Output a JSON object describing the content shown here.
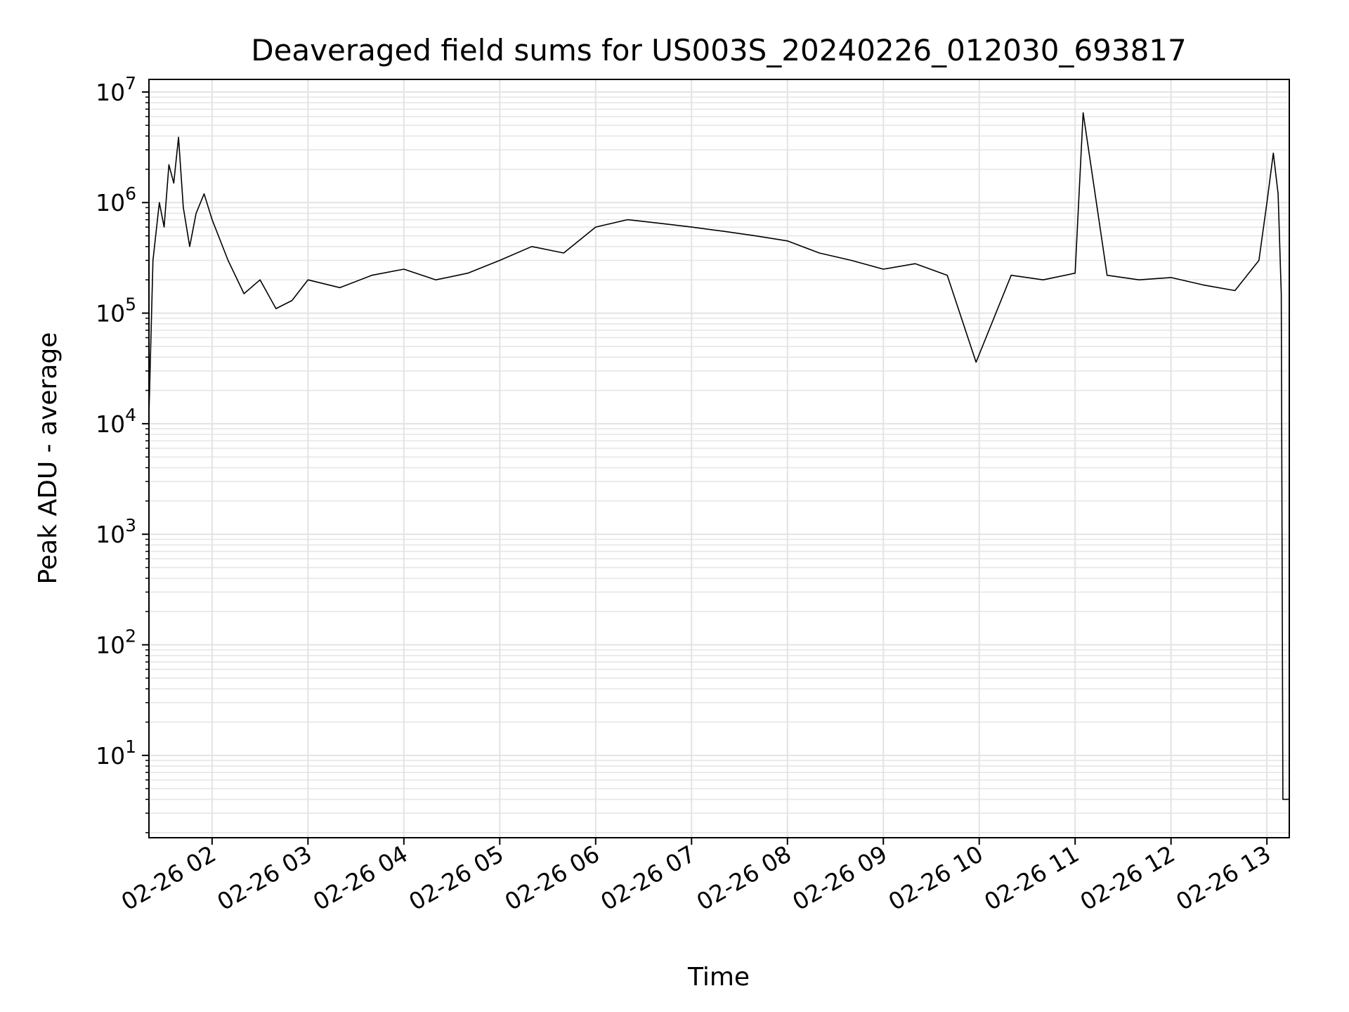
{
  "chart_data": {
    "type": "line",
    "title": "Deaveraged field sums for US003S_20240226_012030_693817",
    "xlabel": "Time",
    "ylabel": "Peak ADU - average",
    "x_axis": {
      "type": "date",
      "range": [
        "2024-02-26T01:20:30",
        "2024-02-26T13:14:00"
      ],
      "ticks": [
        {
          "value": "2024-02-26T02:00",
          "label": "02-26 02"
        },
        {
          "value": "2024-02-26T03:00",
          "label": "02-26 03"
        },
        {
          "value": "2024-02-26T04:00",
          "label": "02-26 04"
        },
        {
          "value": "2024-02-26T05:00",
          "label": "02-26 05"
        },
        {
          "value": "2024-02-26T06:00",
          "label": "02-26 06"
        },
        {
          "value": "2024-02-26T07:00",
          "label": "02-26 07"
        },
        {
          "value": "2024-02-26T08:00",
          "label": "02-26 08"
        },
        {
          "value": "2024-02-26T09:00",
          "label": "02-26 09"
        },
        {
          "value": "2024-02-26T10:00",
          "label": "02-26 10"
        },
        {
          "value": "2024-02-26T11:00",
          "label": "02-26 11"
        },
        {
          "value": "2024-02-26T12:00",
          "label": "02-26 12"
        },
        {
          "value": "2024-02-26T13:00",
          "label": "02-26 13"
        }
      ],
      "tick_label_rotation": 30
    },
    "y_axis": {
      "scale": "log",
      "range": [
        1.8,
        13000000
      ],
      "ticks": [
        {
          "value": 10,
          "base": "10",
          "exp": "1"
        },
        {
          "value": 100,
          "base": "10",
          "exp": "2"
        },
        {
          "value": 1000,
          "base": "10",
          "exp": "3"
        },
        {
          "value": 10000,
          "base": "10",
          "exp": "4"
        },
        {
          "value": 100000,
          "base": "10",
          "exp": "5"
        },
        {
          "value": 1000000,
          "base": "10",
          "exp": "6"
        },
        {
          "value": 10000000,
          "base": "10",
          "exp": "7"
        }
      ]
    },
    "grid": true,
    "minor_grid": true,
    "legend": "none",
    "series": [
      {
        "color": "#000000",
        "x": [
          "2024-02-26T01:20:30",
          "2024-02-26T01:23",
          "2024-02-26T01:27",
          "2024-02-26T01:30",
          "2024-02-26T01:33",
          "2024-02-26T01:36",
          "2024-02-26T01:39",
          "2024-02-26T01:42",
          "2024-02-26T01:46",
          "2024-02-26T01:50",
          "2024-02-26T01:55",
          "2024-02-26T02:00",
          "2024-02-26T02:10",
          "2024-02-26T02:20",
          "2024-02-26T02:30",
          "2024-02-26T02:40",
          "2024-02-26T02:50",
          "2024-02-26T03:00",
          "2024-02-26T03:20",
          "2024-02-26T03:40",
          "2024-02-26T04:00",
          "2024-02-26T04:20",
          "2024-02-26T04:40",
          "2024-02-26T05:00",
          "2024-02-26T05:20",
          "2024-02-26T05:40",
          "2024-02-26T06:00",
          "2024-02-26T06:20",
          "2024-02-26T06:40",
          "2024-02-26T07:00",
          "2024-02-26T07:20",
          "2024-02-26T07:40",
          "2024-02-26T08:00",
          "2024-02-26T08:20",
          "2024-02-26T08:40",
          "2024-02-26T09:00",
          "2024-02-26T09:20",
          "2024-02-26T09:40",
          "2024-02-26T09:58",
          "2024-02-26T10:20",
          "2024-02-26T10:40",
          "2024-02-26T11:00",
          "2024-02-26T11:05",
          "2024-02-26T11:20",
          "2024-02-26T11:40",
          "2024-02-26T12:00",
          "2024-02-26T12:20",
          "2024-02-26T12:40",
          "2024-02-26T12:55",
          "2024-02-26T13:00",
          "2024-02-26T13:04",
          "2024-02-26T13:07",
          "2024-02-26T13:09",
          "2024-02-26T13:10",
          "2024-02-26T13:12",
          "2024-02-26T13:14"
        ],
        "y": [
          12000,
          300000,
          1000000,
          600000,
          2200000,
          1500000,
          3900000,
          900000,
          400000,
          800000,
          1200000,
          700000,
          300000,
          150000,
          200000,
          110000,
          130000,
          200000,
          170000,
          220000,
          250000,
          200000,
          230000,
          300000,
          400000,
          350000,
          600000,
          700000,
          650000,
          600000,
          550000,
          500000,
          450000,
          350000,
          300000,
          250000,
          280000,
          220000,
          36000,
          220000,
          200000,
          230000,
          6500000,
          220000,
          200000,
          210000,
          180000,
          160000,
          300000,
          1000000,
          2800000,
          1200000,
          150000,
          4,
          4,
          4
        ]
      }
    ]
  }
}
